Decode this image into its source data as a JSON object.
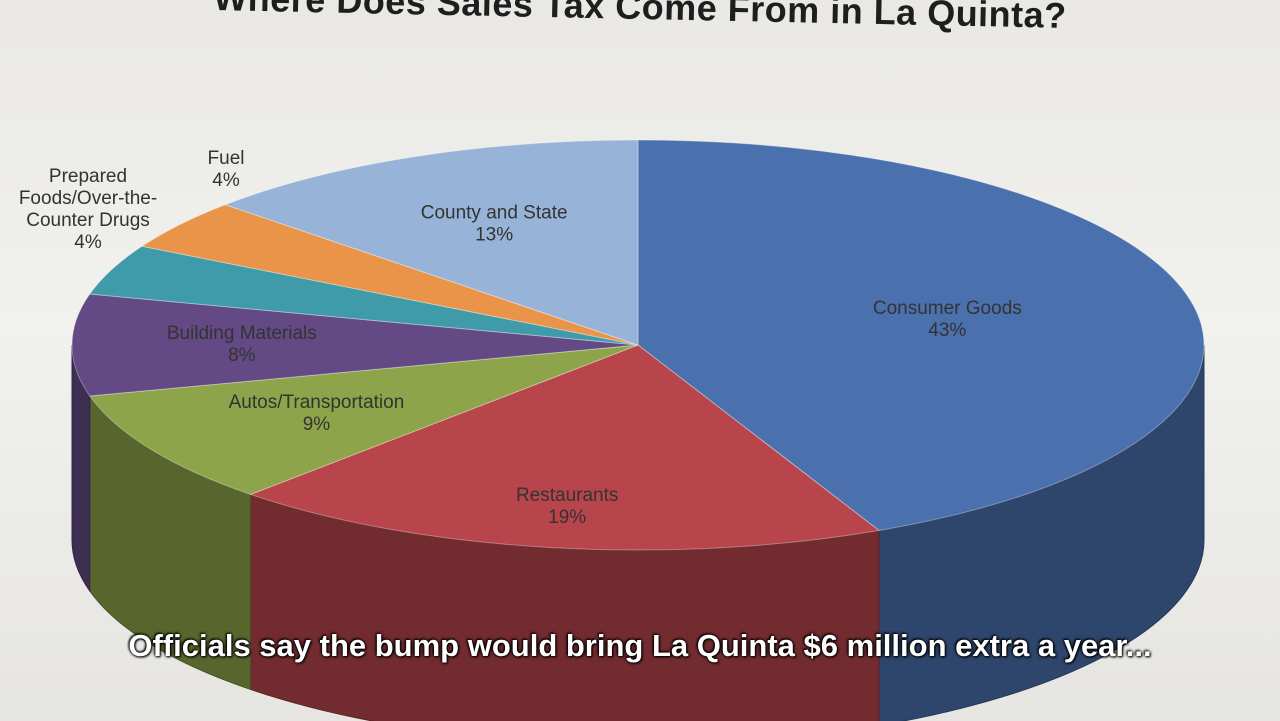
{
  "title": "Where Does Sales Tax Come From in La Quinta?",
  "caption": "Officials say the bump would bring La Quinta $6 million extra a year...",
  "chart_data": {
    "type": "pie",
    "title": "Where Does Sales Tax Come From in La Quinta?",
    "categories": [
      "Consumer Goods",
      "Restaurants",
      "Autos/Transportation",
      "Building Materials",
      "Prepared Foods/Over-the-Counter Drugs",
      "Fuel",
      "County and State"
    ],
    "values": [
      43,
      19,
      9,
      8,
      4,
      4,
      13
    ],
    "labels": [
      {
        "lines": [
          "Consumer Goods",
          "43%"
        ]
      },
      {
        "lines": [
          "Restaurants",
          "19%"
        ]
      },
      {
        "lines": [
          "Autos/Transportation",
          "9%"
        ]
      },
      {
        "lines": [
          "Building Materials",
          "8%"
        ]
      },
      {
        "lines": [
          "Prepared",
          "Foods/Over-the-",
          "Counter Drugs",
          "4%"
        ]
      },
      {
        "lines": [
          "Fuel",
          "4%"
        ]
      },
      {
        "lines": [
          "County and State",
          "13%"
        ]
      }
    ],
    "colors": [
      "#4a70ae",
      "#b8454b",
      "#8ea44a",
      "#634a84",
      "#3f9aaa",
      "#e99448",
      "#98b3d8"
    ],
    "legend": "none",
    "style": "3d"
  }
}
